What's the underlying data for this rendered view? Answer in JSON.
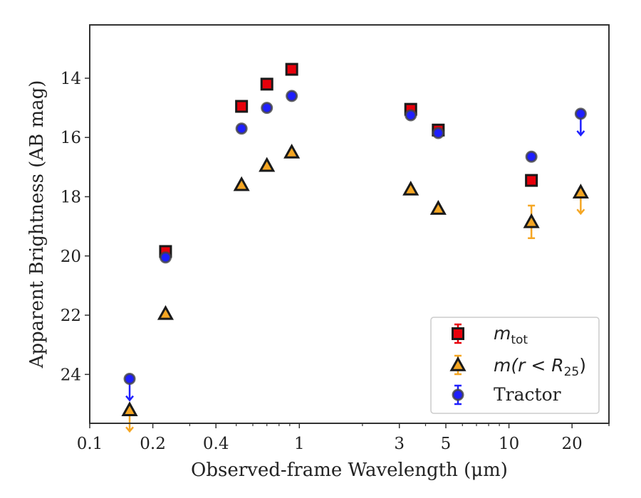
{
  "chart_data": {
    "type": "scatter",
    "xlabel": "Observed-frame Wavelength (μm)",
    "ylabel": "Apparent Brightness (AB mag)",
    "x_scale": "log",
    "xlim": [
      0.1,
      30
    ],
    "ylim": [
      25.65,
      12.2
    ],
    "y_inverted": true,
    "x_tick_labels": [
      "0.1",
      "0.2",
      "0.4",
      "1",
      "3",
      "5",
      "10",
      "20"
    ],
    "x_tick_values": [
      0.1,
      0.2,
      0.4,
      1,
      3,
      5,
      10,
      20
    ],
    "y_tick_labels": [
      "14",
      "16",
      "18",
      "20",
      "22",
      "24"
    ],
    "y_tick_values": [
      14,
      16,
      18,
      20,
      22,
      24
    ],
    "grid": false,
    "legend_position": "lower-right",
    "legend": [
      {
        "series": "m_tot",
        "marker": "square",
        "label_base": "m",
        "label_sub": "tot"
      },
      {
        "series": "m_r25",
        "marker": "triangle",
        "label_parts": [
          "m(r < R",
          "25",
          ")"
        ]
      },
      {
        "series": "tractor",
        "marker": "circle",
        "label": "Tractor"
      }
    ],
    "series": [
      {
        "id": "m_tot",
        "marker": "square",
        "color": "#e8000b",
        "errcolor": "#e8000b",
        "points": [
          {
            "x": 0.23,
            "y": 19.85
          },
          {
            "x": 0.53,
            "y": 14.95
          },
          {
            "x": 0.7,
            "y": 14.2
          },
          {
            "x": 0.92,
            "y": 13.7
          },
          {
            "x": 3.4,
            "y": 15.05
          },
          {
            "x": 4.6,
            "y": 15.75
          },
          {
            "x": 12.8,
            "y": 17.45
          }
        ]
      },
      {
        "id": "m_r25",
        "marker": "triangle",
        "color": "#f5a623",
        "errcolor": "#f5a623",
        "points": [
          {
            "x": 0.155,
            "y": 25.2,
            "upper_limit": true
          },
          {
            "x": 0.23,
            "y": 21.95
          },
          {
            "x": 0.53,
            "y": 17.6
          },
          {
            "x": 0.7,
            "y": 16.95
          },
          {
            "x": 0.92,
            "y": 16.5
          },
          {
            "x": 3.4,
            "y": 17.75
          },
          {
            "x": 4.6,
            "y": 18.4
          },
          {
            "x": 12.8,
            "y": 18.85,
            "yerr": 0.55
          },
          {
            "x": 22.0,
            "y": 17.85,
            "upper_limit": true
          }
        ]
      },
      {
        "id": "tractor",
        "marker": "circle",
        "color": "#1f1fff",
        "errcolor": "#1f1fff",
        "points": [
          {
            "x": 0.155,
            "y": 24.15,
            "upper_limit": true
          },
          {
            "x": 0.23,
            "y": 20.05
          },
          {
            "x": 0.53,
            "y": 15.7
          },
          {
            "x": 0.7,
            "y": 15.0
          },
          {
            "x": 0.92,
            "y": 14.6
          },
          {
            "x": 3.4,
            "y": 15.25
          },
          {
            "x": 4.6,
            "y": 15.85
          },
          {
            "x": 12.8,
            "y": 16.65
          },
          {
            "x": 22.0,
            "y": 15.2,
            "upper_limit": true
          }
        ]
      }
    ]
  }
}
